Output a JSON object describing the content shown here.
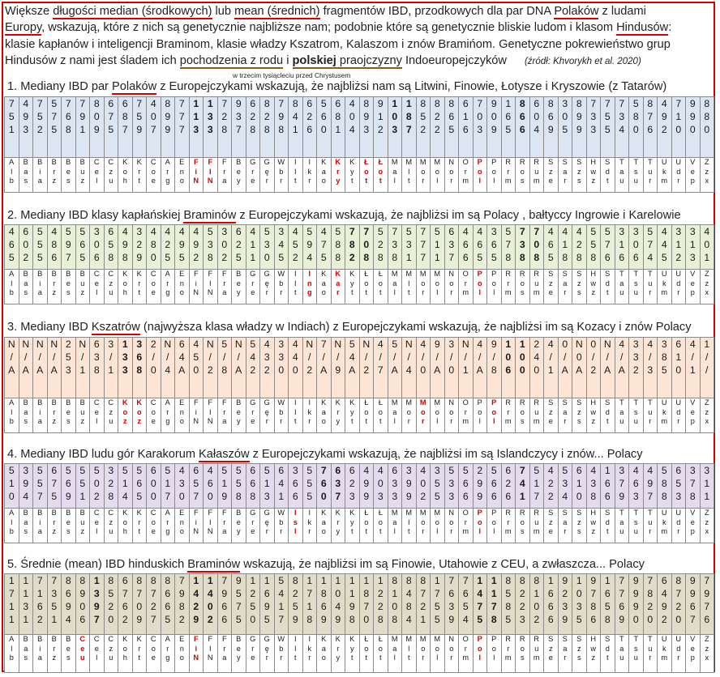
{
  "intro": {
    "line1": [
      {
        "t": "Większe "
      },
      {
        "t": "długości median (środkowych)",
        "u": 1
      },
      {
        "t": " lub "
      },
      {
        "t": "mean (średnich)",
        "u": 1
      },
      {
        "t": " fragmentów IBD, przodkowych dla par DNA "
      },
      {
        "t": "Polaków",
        "u": 1
      },
      {
        "t": " z ludami"
      }
    ],
    "line2": [
      {
        "t": "Europy",
        "u": 1
      },
      {
        "t": ", wskazują, które z nich są genetycznie najbliższe nam; podobnie które są genetycznie bliskie ludom i klasom "
      },
      {
        "t": "Hindusów",
        "u": 1
      },
      {
        "t": ":"
      }
    ],
    "line3": "klasie kapłanów i inteligencji Braminom, klasie władzy Kszatrom, Kalaszom i znów Bramińom.  Genetyczne pokrewieństwo grup",
    "line4": [
      {
        "t": "Hindusów z nami jest śladem ich "
      },
      {
        "t": "pochodzenia z rodu",
        "u": 2
      },
      {
        "t": " i "
      },
      {
        "t": "polskiej",
        "b": 1,
        "u": 2
      },
      {
        "t": "  praojczyzny",
        "u": 2
      },
      {
        "t": " Indoeuropejczyków"
      }
    ],
    "source": "(źródł: Khvorykh et al.  2020)",
    "note": "w trzecim tysiącleciu przed Chrystusem"
  },
  "sections": [
    {
      "heading": [
        {
          "t": "1. Mediany IBD par "
        },
        {
          "t": "Polaków",
          "u": 1
        },
        {
          "t": " z Europejczykami wskazują, że najbliżsi nam są Litwini, Finowie, Łotysze i Kryszowie (z Tatarów)"
        }
      ],
      "bg": "#dce6f2",
      "cells": [
        "7\n5\n1",
        "4\n9\n3",
        "7\n5\n2",
        "5\n7\n5",
        "7\n6\n8",
        "7\n9\n1",
        "8\n0\n9",
        "6\n7\n5",
        "6\n8\n7",
        "7\n5\n9",
        "4\n0\n7",
        "8\n9\n9",
        "7\n7\n7",
        "1\n1\n3",
        "1\n3\n3",
        "7\n2\n8",
        "9\n3\n7",
        "6\n2\n8",
        "8\n2\n8",
        "7\n9\n8",
        "8\n4\n1",
        "6\n2\n6",
        "5\n6\n0",
        "6\n8\n1",
        "4\n0\n4",
        "8\n9\n3",
        "9\n1\n2",
        "1\n0\n3",
        "1\n8\n7",
        "8\n5\n2",
        "8\n2\n2",
        "8\n6\n5",
        "6\n1\n6",
        "7\n0\n3",
        "9\n0\n9",
        "1\n6\n5",
        "8\n6\n6",
        "6\n0\n4",
        "8\n6\n9",
        "3\n0\n5",
        "8\n9\n9",
        "7\n3\n3",
        "7\n5\n5",
        "7\n3\n4",
        "5\n8\n0",
        "8\n7\n6",
        "4\n9\n2",
        "7\n1\n0",
        "9\n9\n0",
        "8\n8\n0"
      ],
      "hl": [
        13,
        14,
        27,
        28,
        36
      ],
      "abbr": [
        "A\nl\nb",
        "B\na\ns",
        "B\ni\na",
        "B\nr\nz",
        "B\ne\ns",
        "B\nu\nz",
        "C\ne\nl",
        "C\nz\nu",
        "K\no\nh",
        "K\nr\nt",
        "C\no\ne",
        "A\nr\ng",
        "E\nn\no",
        "F\ni\nN",
        "F\nI\nN",
        "F\nr\na",
        "B\ne\ny",
        "G\nr\ne",
        "G\nę\nr",
        "W\nb\nr",
        "I\nI\nt",
        "I\nk\nr",
        "K\na\no",
        "K\nr\ny",
        "K\ny\nt",
        "Ł\no\nt",
        "Ł\no\nt",
        "M\na\nl",
        "M\nl\nt",
        "M\no\nr",
        "M\no\nl",
        "N\no\nr",
        "O\nr\nm",
        "P\no\nl",
        "P\no\nl",
        "R\nr\nm",
        "R\no\ns",
        "R\nu\nm",
        "S\nz\ne",
        "S\na\nr",
        "S\nz\ns",
        "H\nw\nz",
        "S\nd\nt",
        "T\na\nu",
        "T\ns\nu",
        "T\nu\nr",
        "U\nk\nm",
        "U\nd\nr",
        "V\ne\np",
        "Z\nz\nx"
      ],
      "red": [
        13,
        14,
        23,
        25,
        26,
        33
      ]
    },
    {
      "heading": [
        {
          "t": "2. Mediany IBD klasy kapłańskiej "
        },
        {
          "t": "Braminów",
          "u": 1
        },
        {
          "t": " z Europejczykami wskazują, że najbliżsi im są Polacy , bałtyccy  Ingrowie i Karelowie"
        }
      ],
      "bg": "#e8f0d8",
      "cells": [
        "4\n6\n5",
        "6\n0\n2",
        "5\n5\n5",
        "4\n8\n6",
        "5\n9\n7",
        "5\n6\n5",
        "3\n0\n6",
        "6\n5\n8",
        "4\n9\n8",
        "3\n2\n9",
        "4\n8\n0",
        "4\n2\n5",
        "4\n9\n5",
        "4\n9\n2",
        "5\n3\n8",
        "3\n0\n2",
        "6\n2\n5",
        "4\n1\n1",
        "5\n3\n0",
        "3\n4\n5",
        "4\n5\n2",
        "5\n9\n4",
        "4\n7\n5",
        "5\n8\n8",
        "7\n8\n2",
        "7\n0\n8",
        "5\n2\n8",
        "7\n3\n8",
        "5\n3\n1",
        "7\n7\n7",
        "5\n1\n1",
        "6\n3\n7",
        "4\n6\n6",
        "4\n6\n5",
        "3\n6\n5",
        "5\n7\n8",
        "7\n3\n8",
        "7\n0\n8",
        "4\n6\n5",
        "4\n1\n8",
        "4\n2\n8",
        "5\n5\n8",
        "5\n7\n6",
        "3\n1\n6",
        "3\n0\n6",
        "5\n7\n4",
        "4\n4\n5",
        "3\n1\n2",
        "3\n1\n3",
        "4\n0\n1"
      ],
      "hl": [
        24,
        25,
        36,
        37
      ],
      "abbr": [
        "A\nl\nb",
        "B\na\ns",
        "B\ni\na",
        "B\nr\nz",
        "B\ne\ns",
        "B\nu\nz",
        "C\ne\nl",
        "C\nz\nu",
        "K\no\nh",
        "K\nr\nt",
        "C\no\ne",
        "A\nr\ng",
        "E\nn\no",
        "F\ni\nN",
        "F\nI\nN",
        "F\nr\na",
        "B\ne\ny",
        "G\nr\ne",
        "G\nę\nr",
        "W\nb\nr",
        "I\nI\nt",
        "I\nn\ng",
        "K\na\no",
        "K\na\nr",
        "K\ny\nt",
        "Ł\no\nt",
        "Ł\no\nt",
        "M\na\nl",
        "M\nl\nt",
        "M\no\nr",
        "M\no\nl",
        "N\no\nr",
        "O\nr\nm",
        "P\no\nl",
        "P\no\nl",
        "R\nr\nm",
        "R\no\ns",
        "R\nu\nm",
        "S\nz\ne",
        "S\na\nr",
        "S\nz\ns",
        "H\nw\nz",
        "S\nd\nt",
        "T\na\nu",
        "T\ns\nu",
        "T\nu\nr",
        "U\nk\nm",
        "U\nd\nr",
        "V\ne\np",
        "Z\nz\nx"
      ],
      "red": [
        21,
        23,
        33
      ]
    },
    {
      "heading": [
        {
          "t": "3. Mediany IBD "
        },
        {
          "t": "Kszatrów",
          "u": 1
        },
        {
          "t": " (najwyższa klasa władzy w Indiach) z Europejczykami wskazują, że najbliżsi im są  Kozacy i znów Polacy"
        }
      ],
      "bg": "#fde5d5",
      "cells": [
        "N\n/\nA",
        "N\n/\nA",
        "N\n/\nA",
        "N\n/\nA",
        "2\n5\n3",
        "N\n/\n1",
        "6\n3\n8",
        "3\n/\n1",
        "1\n3\n3",
        "3\n6\n8",
        "2\n/\n0",
        "N\n/\n4",
        "6\n4\nA",
        "4\n5\n0",
        "N\n/\n2",
        "5\n/\n8",
        "N\n/\nA",
        "5\n4\n2",
        "4\n3\n2",
        "3\n3\n0",
        "4\n4\n0",
        "N\n/\n2",
        "7\n/\nA",
        "N\n/\n9",
        "5\n4\nA",
        "N\n/\n2",
        "4\n/\n7",
        "5\n/\nA",
        "N\n/\n4",
        "4\n/\n0",
        "9\n/\nA",
        "3\n/\n0",
        "N\n/\n1",
        "4\n/\nA",
        "9\n/\n8",
        "1\n0\n6",
        "1\n0\n0",
        "2\n4\n0",
        "4\n/\n1",
        "0\n/\nA",
        "N\n0\nA",
        "0\n/\n2",
        "N\n/\nA",
        "4\n/\nA",
        "3\n3\n2",
        "4\n/\n3",
        "3\n8\n5",
        "6\n1\n0",
        "4\n/\n1",
        "1\n/\n/"
      ],
      "hl": [
        8,
        9,
        35,
        36
      ],
      "abbr": [
        "A\nl\nb",
        "B\na\ns",
        "B\ni\na",
        "B\nr\nz",
        "B\ne\ns",
        "B\nu\nz",
        "C\ne\nl",
        "C\nz\nu",
        "K\no\nz",
        "K\no\nz",
        "C\no\ne",
        "A\nr\ng",
        "E\nn\no",
        "F\ni\nN",
        "F\nI\nN",
        "F\nr\na",
        "B\ne\ny",
        "G\nr\ne",
        "G\nę\nr",
        "W\nb\nr",
        "I\nI\nt",
        "I\nk\nr",
        "K\na\no",
        "K\nr\ny",
        "K\ny\nt",
        "Ł\no\nt",
        "Ł\no\nt",
        "M\na\nl",
        "M\no\nr",
        "M\no\nr",
        "M\no\nl",
        "N\no\nr",
        "O\nr\nm",
        "P\no\nl",
        "P\no\nl",
        "R\nr\nm",
        "R\no\ns",
        "R\nu\nm",
        "S\nz\ne",
        "S\na\nr",
        "S\nz\ns",
        "H\nw\nz",
        "S\nd\nt",
        "T\na\nu",
        "T\ns\nu",
        "T\nu\nr",
        "U\nk\nm",
        "U\nd\nr",
        "V\ne\np",
        "Z\nz\nx"
      ],
      "red": [
        8,
        9,
        29,
        34
      ]
    },
    {
      "heading": [
        {
          "t": "4. Mediany IBD ludu gór Karakorum "
        },
        {
          "t": "Kałaszów",
          "u": 1
        },
        {
          "t": " z Europejczykami wskazują, że najbliżsi im są Islandczycy i znów... Polacy"
        }
      ],
      "bg": "#e4dcee",
      "cells": [
        "5\n1\n0",
        "3\n9\n4",
        "5\n5\n7",
        "6\n7\n5",
        "5\n6\n9",
        "5\n5\n1",
        "5\n0\n2",
        "3\n2\n8",
        "5\n1\n4",
        "5\n6\n5",
        "6\n0\n0",
        "5\n1\n7",
        "4\n3\n0",
        "6\n5\n7",
        "4\n6\n0",
        "5\n1\n9",
        "5\n5\n8",
        "6\n6\n8",
        "5\n1\n3",
        "6\n4\n1",
        "3\n6\n6",
        "5\n5\n5",
        "7\n6\n0",
        "6\n3\n7",
        "6\n2\n3",
        "4\n9\n9",
        "4\n0\n3",
        "6\n3\n3",
        "3\n9\n9",
        "4\n0\n2",
        "3\n5\n5",
        "5\n3\n3",
        "5\n6\n6",
        "2\n9\n9",
        "5\n6\n6",
        "6\n2\n6",
        "7\n4\n1",
        "5\n1\n7",
        "4\n2\n2",
        "5\n3\n4",
        "6\n1\n0",
        "4\n3\n8",
        "1\n6\n6",
        "3\n7\n9",
        "4\n6\n3",
        "4\n9\n7",
        "5\n8\n8",
        "6\n5\n3",
        "3\n7\n8",
        "3\n1\n1"
      ],
      "hl": [
        22,
        23,
        36
      ],
      "abbr": [
        "A\nl\nb",
        "B\na\ns",
        "B\ni\na",
        "B\nr\nz",
        "B\ne\ns",
        "B\nu\nz",
        "C\ne\nl",
        "C\nz\nu",
        "K\no\nh",
        "K\nr\nt",
        "C\no\ne",
        "A\nr\ng",
        "E\nn\no",
        "F\ni\nN",
        "F\nI\nN",
        "F\nr\na",
        "B\ne\ny",
        "G\nr\ne",
        "G\nę\nr",
        "W\nb\nr",
        "I\ns\nl",
        "I\nk\nr",
        "K\na\no",
        "K\nr\ny",
        "K\ny\nt",
        "Ł\no\nt",
        "Ł\no\nt",
        "M\na\nl",
        "M\nl\nt",
        "M\no\nr",
        "M\no\nl",
        "N\no\nr",
        "O\nr\nm",
        "P\no\nl",
        "P\no\nl",
        "R\nr\nm",
        "R\no\ns",
        "R\nu\nm",
        "S\nz\ne",
        "S\na\nr",
        "S\nz\ns",
        "H\nw\nz",
        "S\nd\nt",
        "T\na\nu",
        "T\ns\nu",
        "T\nu\nr",
        "U\nk\nm",
        "U\nd\nr",
        "V\ne\np",
        "Z\nz\nx"
      ],
      "red": [
        20,
        33
      ]
    },
    {
      "heading": [
        {
          "t": "5. Średnie (mean) IBD  hinduskich "
        },
        {
          "t": "Braminów",
          "u": 1
        },
        {
          "t": " wskazują, że najbliżsi im są Finowie, Utahowie z CEU, a zwłaszcza... Polacy"
        }
      ],
      "bg": "#e0dcc8",
      "cells": [
        "1\n7\n1\n1",
        "1\n1\n3\n1",
        "7\n1\n6\n2",
        "7\n3\n5\n1",
        "8\n6\n9\n4",
        "8\n9\n0\n6",
        "1\n3\n9\n7",
        "8\n5\n2\n0",
        "6\n7\n6\n2",
        "8\n7\n0\n9",
        "8\n7\n2\n7",
        "8\n6\n6\n5",
        "7\n9\n8\n2",
        "1\n4\n2\n9",
        "1\n4\n0\n2",
        "7\n9\n6\n6",
        "9\n5\n7\n5",
        "1\n2\n5\n0",
        "1\n6\n9\n5",
        "5\n4\n1\n7",
        "8\n2\n5\n9",
        "1\n7\n1\n8",
        "1\n8\n6\n9",
        "1\n0\n4\n9",
        "1\n1\n9\n8",
        "1\n8\n7\n0",
        "1\n2\n2\n8",
        "8\n1\n0\n8",
        "8\n4\n8\n4",
        "8\n7\n2\n1",
        "1\n7\n5\n5",
        "7\n6\n3\n9",
        "7\n6\n5\n4",
        "1\n4\n7\n5",
        "1\n1\n7\n8",
        "8\n5\n8\n5",
        "8\n2\n2\n3",
        "8\n1\n0\n2",
        "1\n6\n6\n6",
        "9\n2\n3\n9",
        "1\n0\n3\n5",
        "9\n7\n8\n6",
        "1\n6\n5\n8",
        "7\n7\n6\n9",
        "9\n9\n9\n0",
        "7\n8\n2\n0",
        "6\n4\n9\n2",
        "8\n7\n2\n0",
        "9\n9\n6\n7",
        "7\n9\n7\n6"
      ],
      "hl": [
        6,
        13,
        14,
        33,
        34
      ],
      "abbr": [
        "A\nl\nb",
        "B\na\ns",
        "B\ni\na",
        "B\nr\nz",
        "B\ne\ns",
        "C\ne\nu",
        "C\ne\nl",
        "C\nz\nu",
        "K\no\nh",
        "K\nr\nt",
        "C\no\ne",
        "A\nr\ng",
        "E\nn\no",
        "F\ni\nN",
        "F\nI\nN",
        "F\nr\na",
        "B\ne\ny",
        "G\nr\ne",
        "G\nę\nr",
        "W\nb\nr",
        "I\nI\nt",
        "I\nk\nr",
        "K\na\no",
        "K\nr\ny",
        "K\ny\nt",
        "Ł\no\nt",
        "Ł\no\nt",
        "M\na\nl",
        "M\nl\nt",
        "M\no\nr",
        "M\no\nl",
        "N\no\nr",
        "O\nr\nm",
        "P\no\nl",
        "P\no\nl",
        "R\nr\nm",
        "R\no\ns",
        "R\nu\nm",
        "S\nz\ne",
        "S\na\nr",
        "S\nz\ns",
        "H\nw\nz",
        "S\nd\nt",
        "T\na\nu",
        "T\ns\nu",
        "T\nu\nr",
        "U\nk\nm",
        "U\nd\nr",
        "V\ne\np",
        "Z\nz\nx"
      ],
      "red": [
        5,
        13,
        33
      ]
    }
  ]
}
